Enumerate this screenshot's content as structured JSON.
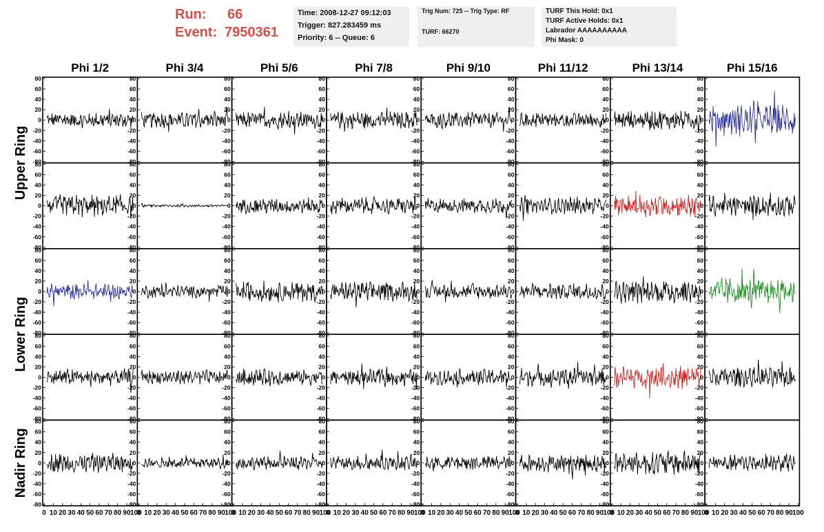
{
  "header": {
    "run_label": "Run:",
    "run_value": "66",
    "event_label": "Event:",
    "event_value": "7950361",
    "time": "Time: 2008-12-27 09:12:03",
    "trigger": "Trigger: 827.283459 ms",
    "priority": "Priority: 6 -- Queue: 6",
    "trig_num": "Trig Num: 725 -- Trig Type: RF",
    "turf": "TURF: 66270",
    "turf_hold": "TURF This Hold: 0x1",
    "turf_active": "TURF Active Holds: 0x1",
    "labrador": "Labrador AAAAAAAAAA",
    "phi_mask": "Phi Mask: 0",
    "accent_color": "#d0504a"
  },
  "chart_data": {
    "type": "line",
    "columns": [
      "Phi 1/2",
      "Phi 3/4",
      "Phi 5/6",
      "Phi 7/8",
      "Phi 9/10",
      "Phi 11/12",
      "Phi 13/14",
      "Phi 15/16"
    ],
    "ring_labels": [
      {
        "name": "Upper Ring",
        "rows": [
          0,
          1
        ]
      },
      {
        "name": "Lower Ring",
        "rows": [
          2,
          3
        ]
      },
      {
        "name": "Nadir Ring",
        "rows": [
          4
        ]
      }
    ],
    "xlim": [
      0,
      100
    ],
    "ylim": [
      -80,
      80
    ],
    "x_ticks": [
      "0",
      "10",
      "20",
      "30",
      "40",
      "50",
      "60",
      "70",
      "80",
      "90",
      "100"
    ],
    "y_ticks": [
      "80",
      "60",
      "40",
      "20",
      "0",
      "-20",
      "-40",
      "-60",
      "-80"
    ],
    "colors": {
      "default": "#000000",
      "blue": "#2b2f9a",
      "red": "#cc2222",
      "green": "#1e8c1e"
    },
    "panels": [
      [
        {
          "amp": 12
        },
        {
          "amp": 12
        },
        {
          "amp": 13
        },
        {
          "amp": 13
        },
        {
          "amp": 12
        },
        {
          "amp": 11
        },
        {
          "amp": 16
        },
        {
          "amp": 24,
          "color": "blue"
        }
      ],
      [
        {
          "amp": 17
        },
        {
          "amp": 2
        },
        {
          "amp": 12
        },
        {
          "amp": 13
        },
        {
          "amp": 12
        },
        {
          "amp": 13
        },
        {
          "amp": 17,
          "color": "red"
        },
        {
          "amp": 16
        }
      ],
      [
        {
          "amp": 12,
          "color": "blue"
        },
        {
          "amp": 10
        },
        {
          "amp": 16
        },
        {
          "amp": 15
        },
        {
          "amp": 11
        },
        {
          "amp": 13
        },
        {
          "amp": 18
        },
        {
          "amp": 20,
          "color": "green"
        }
      ],
      [
        {
          "amp": 13
        },
        {
          "amp": 11
        },
        {
          "amp": 13
        },
        {
          "amp": 12
        },
        {
          "amp": 12
        },
        {
          "amp": 14
        },
        {
          "amp": 17,
          "color": "red"
        },
        {
          "amp": 15
        }
      ],
      [
        {
          "amp": 15
        },
        {
          "amp": 8
        },
        {
          "amp": 10
        },
        {
          "amp": 11
        },
        {
          "amp": 11
        },
        {
          "amp": 14
        },
        {
          "amp": 18
        },
        {
          "amp": 14
        }
      ]
    ]
  }
}
